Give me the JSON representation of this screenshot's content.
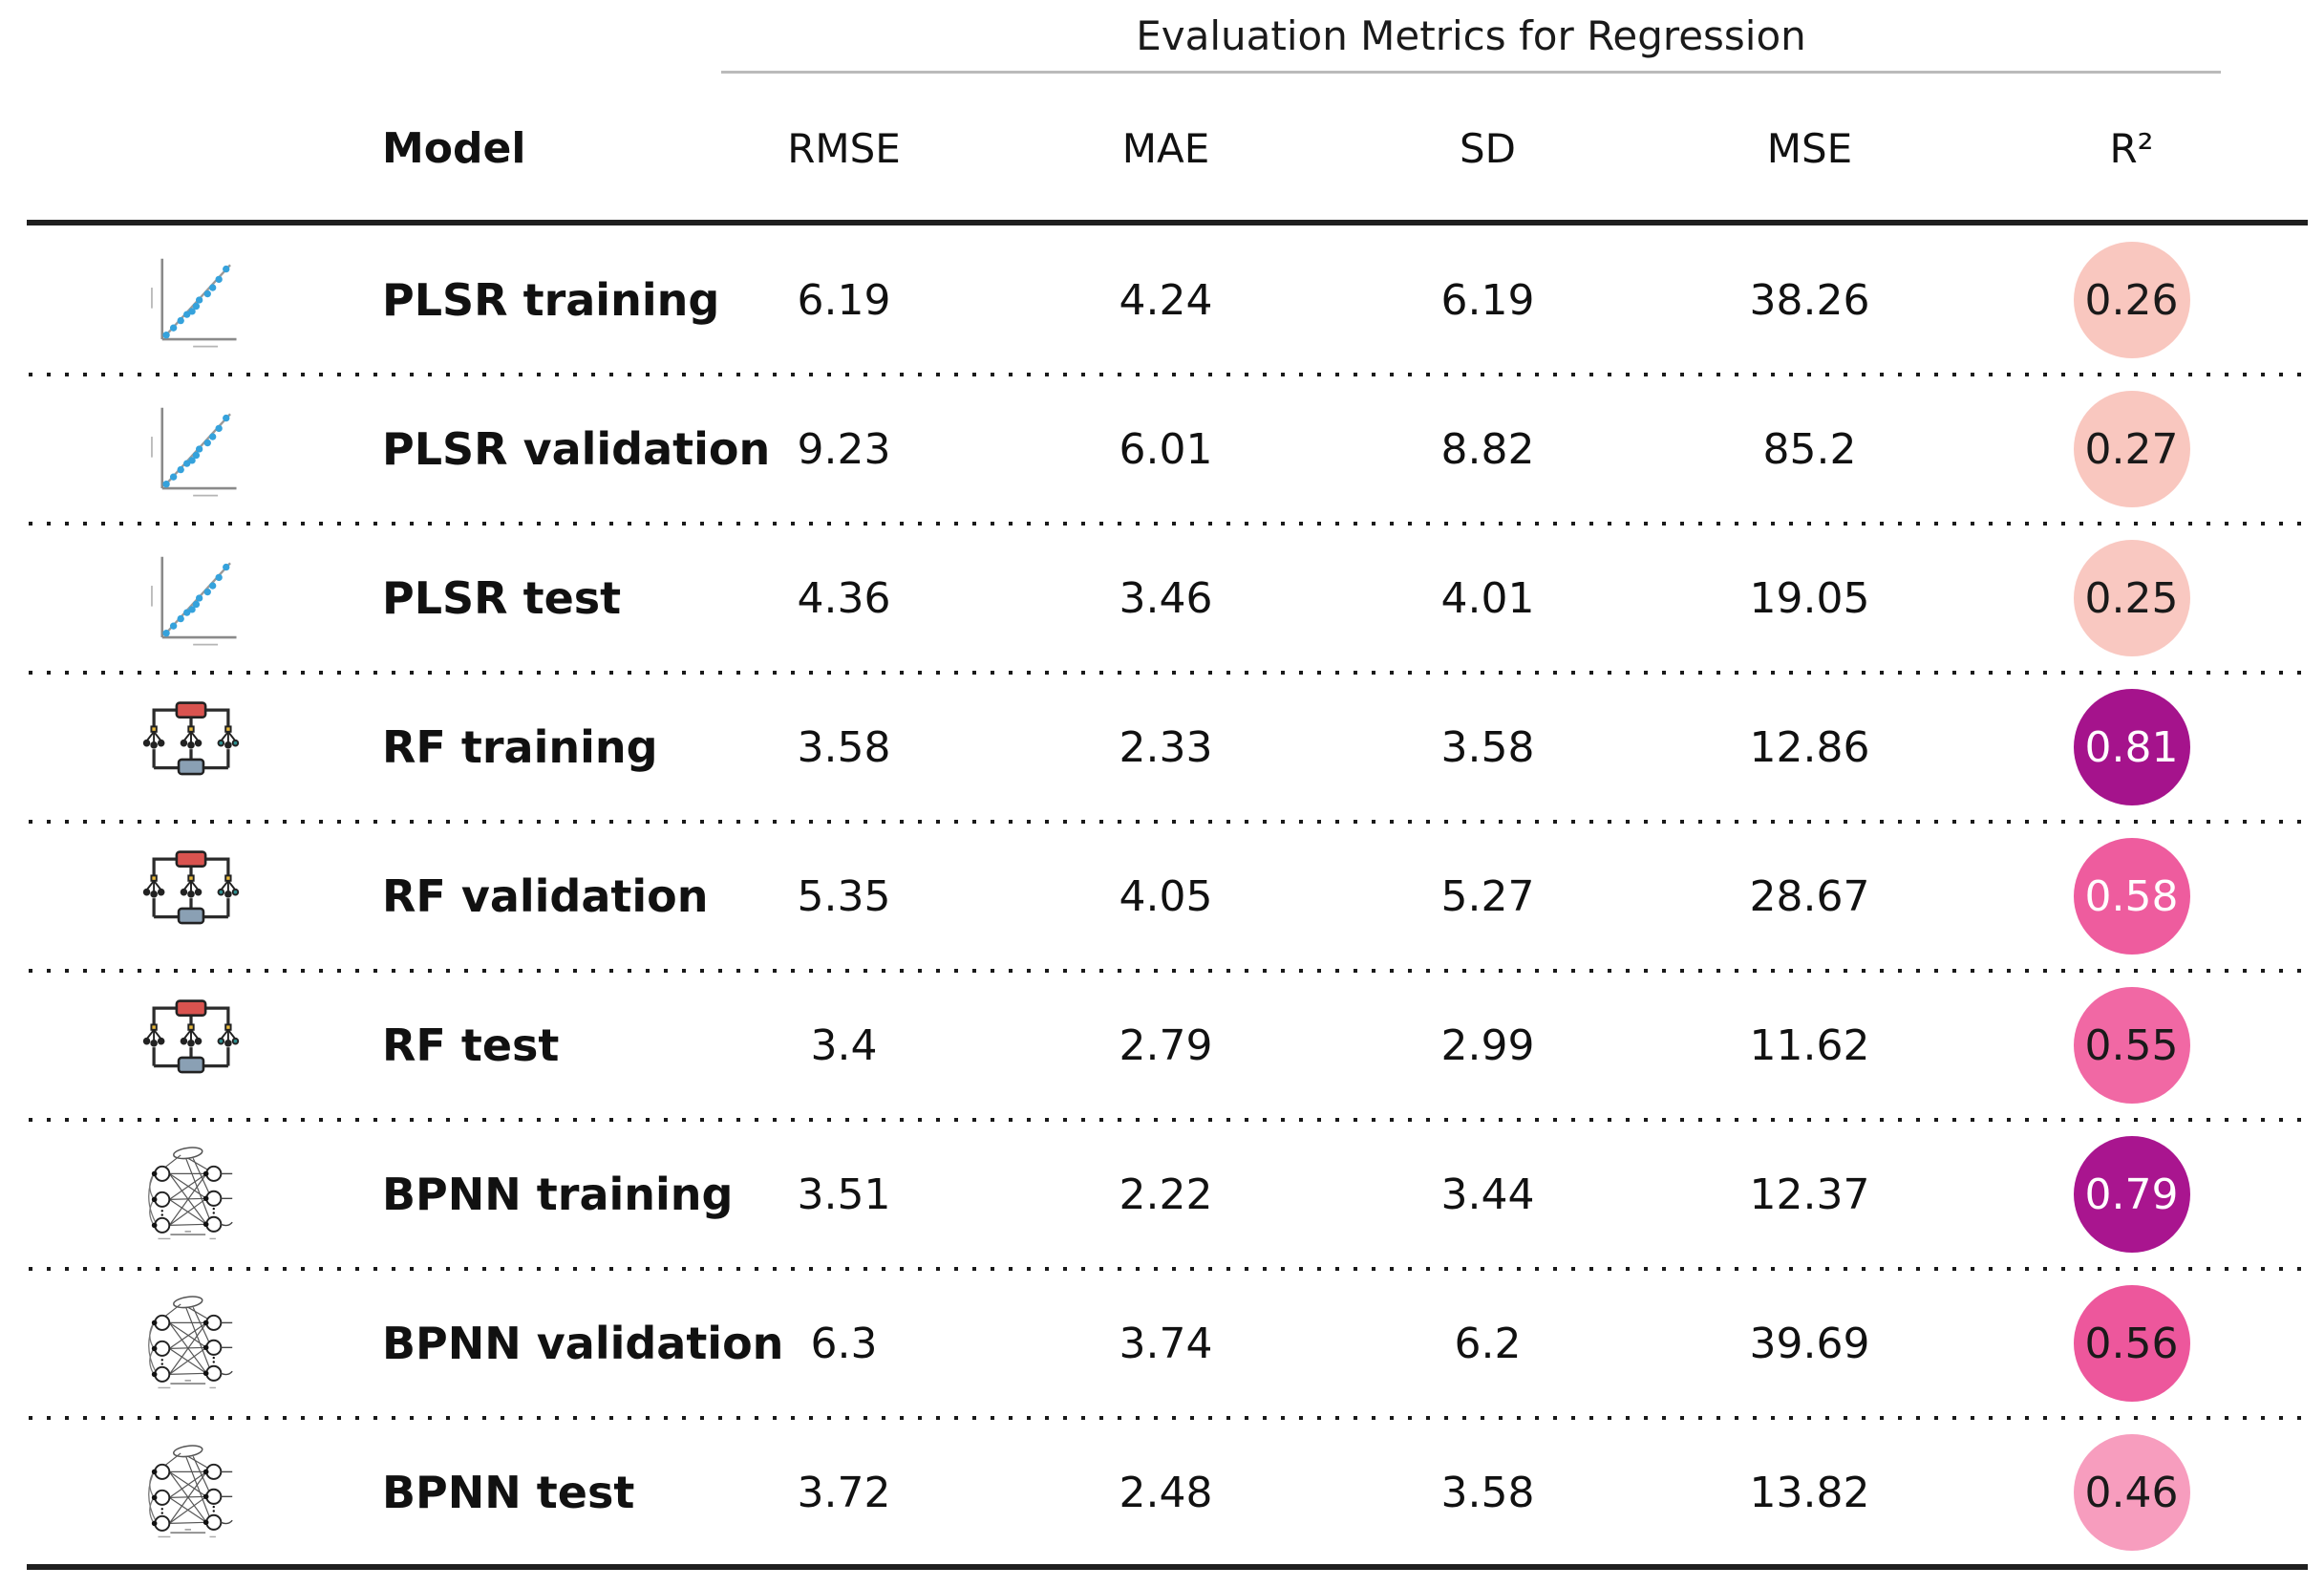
{
  "title": "Evaluation Metrics for Regression",
  "columns": {
    "model": "Model",
    "rmse": "RMSE",
    "mae": "MAE",
    "sd": "SD",
    "mse": "MSE",
    "r2": "R²"
  },
  "rows": [
    {
      "icon": "scatter-plot",
      "model": "PLSR training",
      "rmse": "6.19",
      "mae": "4.24",
      "sd": "6.19",
      "mse": "38.26",
      "r2": "0.26",
      "r2_color": "#f9c7bf",
      "r2_text": "#1a1a1a"
    },
    {
      "icon": "scatter-plot",
      "model": "PLSR validation",
      "rmse": "9.23",
      "mae": "6.01",
      "sd": "8.82",
      "mse": "85.2",
      "r2": "0.27",
      "r2_color": "#f9c7bf",
      "r2_text": "#1a1a1a"
    },
    {
      "icon": "scatter-plot",
      "model": "PLSR test",
      "rmse": "4.36",
      "mae": "3.46",
      "sd": "4.01",
      "mse": "19.05",
      "r2": "0.25",
      "r2_color": "#f9c8c1",
      "r2_text": "#1a1a1a"
    },
    {
      "icon": "random-forest",
      "model": "RF training",
      "rmse": "3.58",
      "mae": "2.33",
      "sd": "3.58",
      "mse": "12.86",
      "r2": "0.81",
      "r2_color": "#a5138c",
      "r2_text": "#ffffff"
    },
    {
      "icon": "random-forest",
      "model": "RF validation",
      "rmse": "5.35",
      "mae": "4.05",
      "sd": "5.27",
      "mse": "28.67",
      "r2": "0.58",
      "r2_color": "#ee5c9e",
      "r2_text": "#ffffff"
    },
    {
      "icon": "random-forest",
      "model": "RF test",
      "rmse": "3.4",
      "mae": "2.79",
      "sd": "2.99",
      "mse": "11.62",
      "r2": "0.55",
      "r2_color": "#f168a4",
      "r2_text": "#1a1a1a"
    },
    {
      "icon": "neural-network",
      "model": "BPNN training",
      "rmse": "3.51",
      "mae": "2.22",
      "sd": "3.44",
      "mse": "12.37",
      "r2": "0.79",
      "r2_color": "#a9158f",
      "r2_text": "#ffffff"
    },
    {
      "icon": "neural-network",
      "model": "BPNN validation",
      "rmse": "6.3",
      "mae": "3.74",
      "sd": "6.2",
      "mse": "39.69",
      "r2": "0.56",
      "r2_color": "#ed579c",
      "r2_text": "#1a1a1a"
    },
    {
      "icon": "neural-network",
      "model": "BPNN test",
      "rmse": "3.72",
      "mae": "2.48",
      "sd": "3.58",
      "mse": "13.82",
      "r2": "0.46",
      "r2_color": "#f79dbe",
      "r2_text": "#1a1a1a"
    }
  ],
  "style": {
    "scatter_dot_color": "#35a2dc",
    "rf_root_color": "#d9534f",
    "rf_output_color": "#8aa0b4",
    "rf_leaf_accent": "#e8b93c",
    "rf_leaf_teal": "#2a8c8c",
    "line_color": "#1f1f1f",
    "title_rule_color": "#bbbbbb"
  },
  "chart_data": {
    "type": "table",
    "title": "Evaluation Metrics for Regression",
    "columns": [
      "Model",
      "RMSE",
      "MAE",
      "SD",
      "MSE",
      "R²"
    ],
    "rows": [
      [
        "PLSR training",
        6.19,
        4.24,
        6.19,
        38.26,
        0.26
      ],
      [
        "PLSR validation",
        9.23,
        6.01,
        8.82,
        85.2,
        0.27
      ],
      [
        "PLSR test",
        4.36,
        3.46,
        4.01,
        19.05,
        0.25
      ],
      [
        "RF training",
        3.58,
        2.33,
        3.58,
        12.86,
        0.81
      ],
      [
        "RF validation",
        5.35,
        4.05,
        5.27,
        28.67,
        0.58
      ],
      [
        "RF test",
        3.4,
        2.79,
        2.99,
        11.62,
        0.55
      ],
      [
        "BPNN training",
        3.51,
        2.22,
        3.44,
        12.37,
        0.79
      ],
      [
        "BPNN validation",
        6.3,
        3.74,
        6.2,
        39.69,
        0.56
      ],
      [
        "BPNN test",
        3.72,
        2.48,
        3.58,
        13.82,
        0.46
      ]
    ],
    "notes": "R² cells rendered as colored circles; darker magenta = higher R², light pink = lower R²"
  }
}
